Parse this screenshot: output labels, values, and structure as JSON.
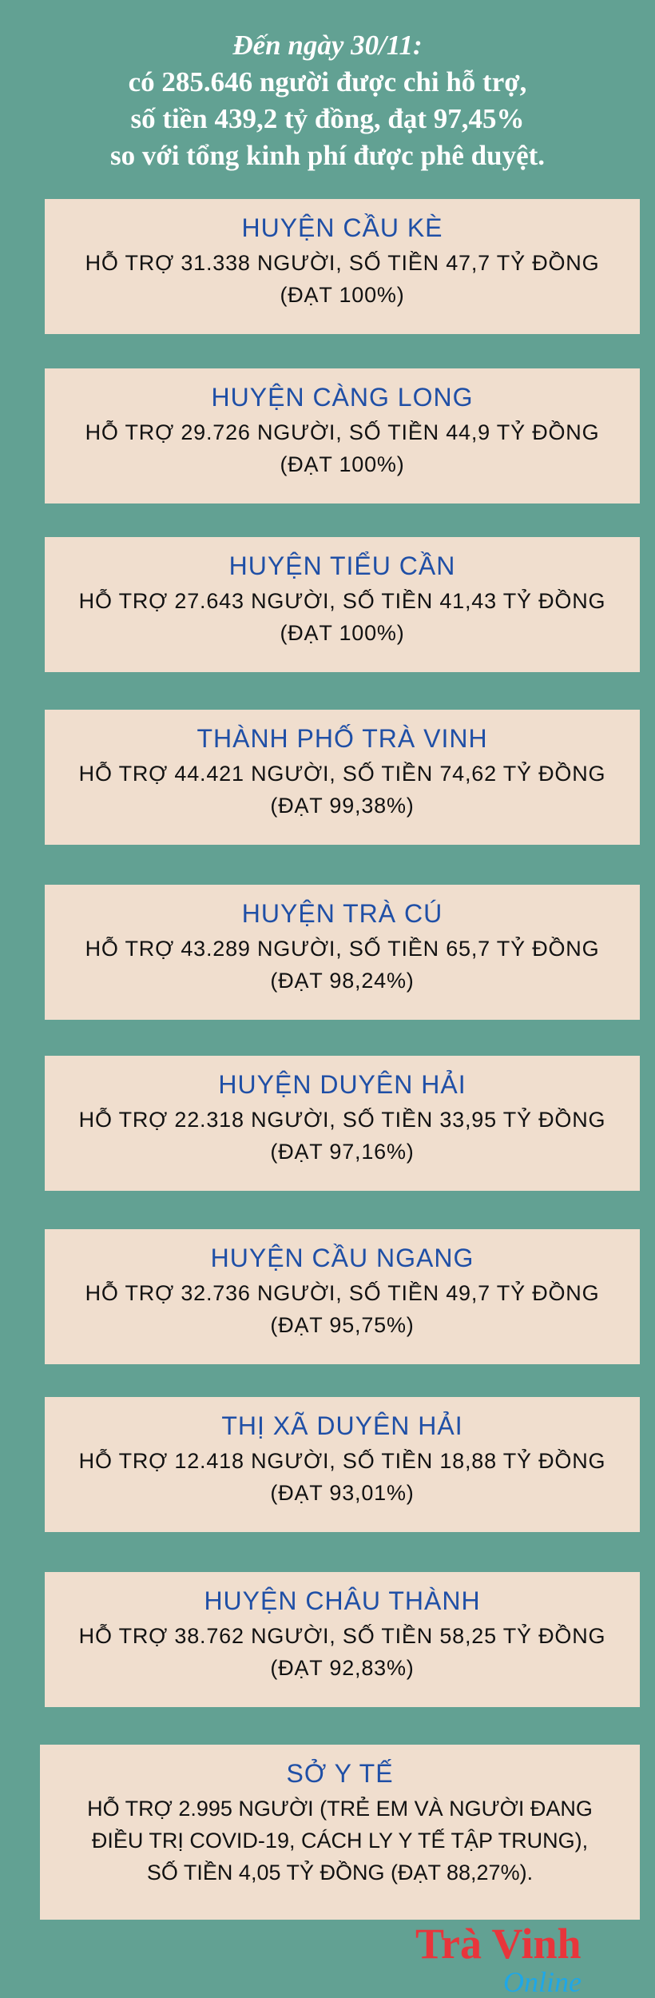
{
  "colors": {
    "background": "#62a193",
    "box": "#f0dece",
    "heading": "#1f4fa6",
    "logo_red": "#e8353b",
    "logo_blue": "#1ea7e8"
  },
  "header": {
    "line1": "Đến ngày 30/11:",
    "line2": "có 285.646 người được chi hỗ trợ,",
    "line3": "số tiền 439,2 tỷ đồng, đạt 97,45%",
    "line4": "so với tổng kinh phí được phê duyệt."
  },
  "units": [
    {
      "name": "HUYỆN CẦU KÈ",
      "line1": "HỖ TRỢ 31.338 NGƯỜI, SỐ TIỀN 47,7 TỶ ĐỒNG",
      "line2": "(ĐẠT 100%)"
    },
    {
      "name": "HUYỆN CÀNG LONG",
      "line1": "HỖ TRỢ 29.726 NGƯỜI, SỐ TIỀN 44,9 TỶ ĐỒNG",
      "line2": "(ĐẠT 100%)"
    },
    {
      "name": "HUYỆN TIỂU CẦN",
      "line1": "HỖ TRỢ 27.643 NGƯỜI, SỐ TIỀN 41,43 TỶ ĐỒNG",
      "line2": "(ĐẠT 100%)"
    },
    {
      "name": "THÀNH PHỐ TRÀ VINH",
      "line1": "HỖ TRỢ 44.421 NGƯỜI, SỐ TIỀN 74,62 TỶ ĐỒNG",
      "line2": "(ĐẠT 99,38%)"
    },
    {
      "name": "HUYỆN TRÀ CÚ",
      "line1": "HỖ TRỢ 43.289 NGƯỜI, SỐ TIỀN 65,7 TỶ ĐỒNG",
      "line2": "(ĐẠT 98,24%)"
    },
    {
      "name": "HUYỆN DUYÊN HẢI",
      "line1": "HỖ TRỢ 22.318 NGƯỜI, SỐ TIỀN 33,95 TỶ ĐỒNG",
      "line2": "(ĐẠT 97,16%)"
    },
    {
      "name": "HUYỆN CẦU NGANG",
      "line1": "HỖ TRỢ 32.736 NGƯỜI, SỐ TIỀN 49,7 TỶ ĐỒNG",
      "line2": "(ĐẠT 95,75%)"
    },
    {
      "name": "THỊ XÃ DUYÊN HẢI",
      "line1": "HỖ TRỢ 12.418 NGƯỜI, SỐ TIỀN 18,88 TỶ ĐỒNG",
      "line2": "(ĐẠT 93,01%)"
    },
    {
      "name": "HUYỆN CHÂU THÀNH",
      "line1": "HỖ TRỢ 38.762 NGƯỜI, SỐ TIỀN 58,25 TỶ ĐỒNG",
      "line2": "(ĐẠT 92,83%)"
    },
    {
      "name": "SỞ Y TẾ",
      "line1": "HỖ TRỢ 2.995 NGƯỜI (TRẺ EM VÀ NGƯỜI ĐANG",
      "line2": "ĐIỀU TRỊ COVID-19, CÁCH LY Y TẾ TẬP TRUNG),",
      "line3": "SỐ TIỀN 4,05 TỶ ĐỒNG (ĐẠT 88,27%)."
    }
  ],
  "logo": {
    "word1": "Trà Vinh",
    "word2": "Online"
  }
}
